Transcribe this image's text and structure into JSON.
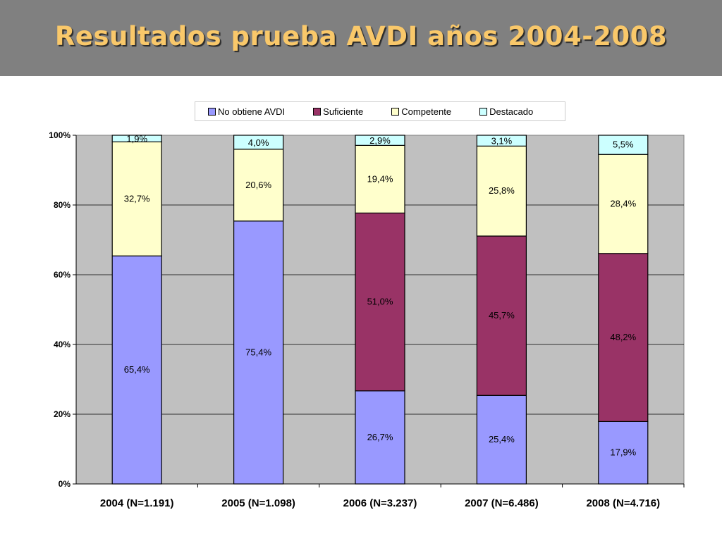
{
  "chart_data": {
    "type": "bar",
    "stacked": true,
    "title": "Resultados prueba AVDI años 2004-2008",
    "categories": [
      "2004 (N=1.191)",
      "2005 (N=1.098)",
      "2006 (N=3.237)",
      "2007 (N=6.486)",
      "2008 (N=4.716)"
    ],
    "series": [
      {
        "name": "No obtiene AVDI",
        "color": "#9999ff",
        "values": [
          65.4,
          75.4,
          26.7,
          25.4,
          17.9
        ],
        "labels": [
          "65,4%",
          "75,4%",
          "26,7%",
          "25,4%",
          "17,9%"
        ]
      },
      {
        "name": "Suficiente",
        "color": "#993366",
        "values": [
          0,
          0,
          51.0,
          45.7,
          48.2
        ],
        "labels": [
          "",
          "",
          "51,0%",
          "45,7%",
          "48,2%"
        ]
      },
      {
        "name": "Competente",
        "color": "#ffffcc",
        "values": [
          32.7,
          20.6,
          19.4,
          25.8,
          28.4
        ],
        "labels": [
          "32,7%",
          "20,6%",
          "19,4%",
          "25,8%",
          "28,4%"
        ]
      },
      {
        "name": "Destacado",
        "color": "#ccffff",
        "values": [
          1.9,
          4.0,
          2.9,
          3.1,
          5.5
        ],
        "labels": [
          "1,9%",
          "4,0%",
          "2,9%",
          "3,1%",
          "5,5%"
        ]
      }
    ],
    "ylim": [
      0,
      100
    ],
    "yticks": [
      "0%",
      "20%",
      "40%",
      "60%",
      "80%",
      "100%"
    ],
    "grid": true,
    "legend_position": "top",
    "plot_background": "#c0c0c0"
  }
}
